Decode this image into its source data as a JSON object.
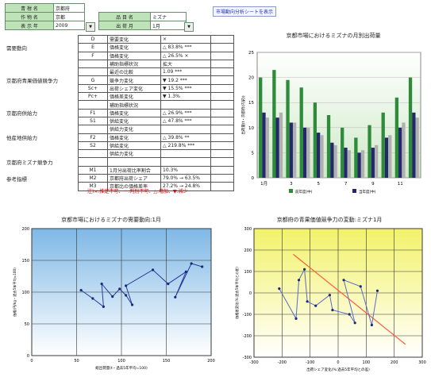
{
  "header": {
    "row1": {
      "label": "青 柑 名",
      "value": "京都府"
    },
    "row2": {
      "label": "作 物 名",
      "value": "京都",
      "label2": "品 目 名",
      "value2": "ミズナ"
    },
    "row3": {
      "label": "表 示 年",
      "value": "2009",
      "sel": "▼",
      "label2": "出 荷 月",
      "value2": "1月",
      "sel2": "▼"
    },
    "link": "市場動向分析シートを表示"
  },
  "table": {
    "rows": [
      {
        "cat": "",
        "code": "D",
        "name": "需要変化",
        "val": "×",
        "ind": ""
      },
      {
        "cat": "需要動向",
        "code": "E",
        "name": "価格変化",
        "val": "△ 83.8% ***",
        "ind": ""
      },
      {
        "cat": "",
        "code": "F",
        "name": "価格変化",
        "val": "△ 26.5% ×",
        "ind": ""
      },
      {
        "cat": "",
        "code": "",
        "name": "補助指標状況",
        "val": "拡大",
        "ind": ""
      },
      {
        "cat": "",
        "code": "",
        "name": "最近の比較",
        "val": "1.09 ***",
        "ind": ""
      },
      {
        "cat": "京都府青果価値競争力",
        "code": "G",
        "name": "競争力変化",
        "val": "▼ 19.2 ***",
        "ind": ""
      },
      {
        "cat": "",
        "code": "Sc+",
        "name": "出荷シェア変化",
        "val": "▼ 15.5% ***",
        "ind": ""
      },
      {
        "cat": "",
        "code": "Pc+",
        "name": "価格差変化",
        "val": "▼ 1.3%",
        "ind": ""
      },
      {
        "cat": "",
        "code": "",
        "name": "補助指標状況",
        "val": "",
        "ind": ""
      },
      {
        "cat": "京都府供給力",
        "code": "F1",
        "name": "価格変化",
        "val": "△ 26.9% ***",
        "ind": ""
      },
      {
        "cat": "",
        "code": "S1",
        "name": "供給変化",
        "val": "△ 47.8% ***",
        "ind": ""
      },
      {
        "cat": "",
        "code": "",
        "name": "供給力変化",
        "val": "",
        "ind": ""
      },
      {
        "cat": "他産地供給力",
        "code": "F2",
        "name": "価格変化",
        "val": "△ 39.8% **",
        "ind": ""
      },
      {
        "cat": "",
        "code": "S2",
        "name": "供給変化",
        "val": "△ 219.8% ***",
        "ind": ""
      },
      {
        "cat": "",
        "code": "",
        "name": "供給力変化",
        "val": "",
        "ind": ""
      },
      {
        "cat": "京都府ミズナ競争力",
        "code": "",
        "name": "",
        "val": "",
        "ind": ""
      },
      {
        "cat": "",
        "code": "M1",
        "name": "1月分出荷比率割合",
        "val": "10.3%",
        "ind": ""
      },
      {
        "cat": "参考指標",
        "code": "M2",
        "name": "京都府出荷シェア",
        "val": "79.0% → 63.5%",
        "ind": ""
      },
      {
        "cat": "",
        "code": "M3",
        "name": "京都比の価格差率",
        "val": "27.2% → 24.8%",
        "ind": ""
      }
    ],
    "note": "注)×:推定不可、ー:判別不可、△:増加、▼:減少"
  },
  "chart_bar": {
    "type": "bar",
    "title": "京都市場におけるミズナの月別出荷量",
    "ylabel": "出荷量(t・京都府(内訳))",
    "ylim": [
      0,
      25
    ],
    "yticks": [
      "0",
      "5",
      "10",
      "15",
      "20",
      "25"
    ],
    "xticks": [
      "1月",
      "3",
      "5",
      "7",
      "9",
      "11"
    ],
    "legend": [
      "前年度(中)",
      "当年度(中)"
    ],
    "colors": {
      "green": "#2e8b3a",
      "navy": "#22286a",
      "grey": "#b0b0b0"
    },
    "series": [
      {
        "name": "前年度(中)",
        "values": [
          20,
          21.5,
          19.5,
          18,
          15,
          12.5,
          10,
          8,
          10.5,
          13,
          16,
          20
        ]
      },
      {
        "name": "当年度(中)",
        "values": [
          13,
          12,
          11,
          10,
          9,
          7,
          6,
          5,
          6,
          8,
          10,
          13
        ]
      },
      {
        "name": "",
        "values": [
          12,
          13,
          11,
          10,
          8.5,
          6.5,
          5.5,
          5.5,
          6.5,
          8.5,
          11,
          12
        ]
      }
    ]
  },
  "chart_line1": {
    "type": "line",
    "title": "京都市場におけるミズナの需要動向:1月",
    "xlabel": "総出荷量(t・過去5年平均=100)",
    "ylabel": "価格(円/kg・過去5年平均=100)",
    "xlim": [
      0,
      200
    ],
    "ylim": [
      0,
      200
    ],
    "xticks": [
      "0",
      "50",
      "100",
      "150",
      "200"
    ],
    "yticks": [
      "0",
      "50",
      "100",
      "150",
      "200"
    ],
    "color": "#2a3a9a",
    "points": [
      [
        55,
        103
      ],
      [
        68,
        90
      ],
      [
        80,
        77
      ],
      [
        78,
        113
      ],
      [
        90,
        93
      ],
      [
        98,
        105
      ],
      [
        105,
        95
      ],
      [
        112,
        80
      ],
      [
        105,
        110
      ],
      [
        135,
        135
      ],
      [
        152,
        113
      ],
      [
        172,
        132
      ],
      [
        160,
        92
      ],
      [
        178,
        145
      ],
      [
        190,
        140
      ]
    ]
  },
  "chart_scatter": {
    "type": "line",
    "title": "京都府の青果価値競争力の変動:ミズナ1月",
    "xlabel": "出荷シェア変化(%:過去5年平均との差)",
    "ylabel": "価格差変化(%:過去5年平均との差)",
    "xlim": [
      -300,
      300
    ],
    "ylim": [
      -300,
      300
    ],
    "xticks": [
      "-300",
      "-200",
      "-100",
      "0",
      "100",
      "200",
      "300"
    ],
    "yticks": [
      "-300",
      "-200",
      "-100",
      "0",
      "100",
      "200",
      "300"
    ],
    "color": "#5a6acb",
    "trend_color": "#ff5a3a",
    "points": [
      [
        -210,
        20
      ],
      [
        -150,
        -120
      ],
      [
        -140,
        60
      ],
      [
        -120,
        110
      ],
      [
        -110,
        -40
      ],
      [
        -80,
        -60
      ],
      [
        -30,
        -10
      ],
      [
        -20,
        -80
      ],
      [
        40,
        -100
      ],
      [
        60,
        -140
      ],
      [
        20,
        60
      ],
      [
        80,
        30
      ],
      [
        120,
        -150
      ],
      [
        140,
        10
      ]
    ],
    "trend": [
      [
        -160,
        180
      ],
      [
        240,
        -240
      ]
    ]
  }
}
